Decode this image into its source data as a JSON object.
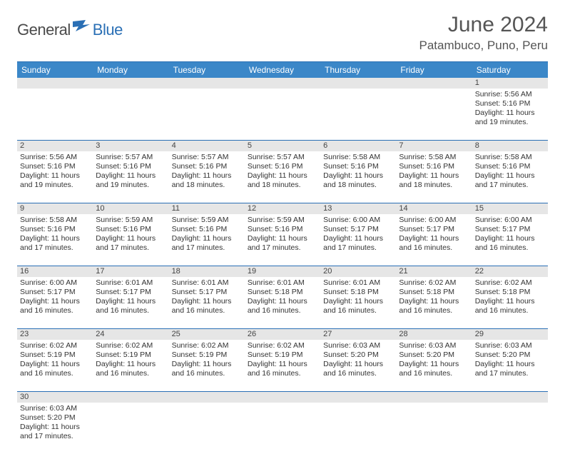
{
  "brand": {
    "name_main": "General",
    "name_accent": "Blue"
  },
  "title": "June 2024",
  "location": "Patambuco, Puno, Peru",
  "colors": {
    "header_bg": "#3b87c8",
    "border": "#2a6fb5",
    "daynum_bg": "#e6e6e6",
    "text": "#333333",
    "title_text": "#555555"
  },
  "day_names": [
    "Sunday",
    "Monday",
    "Tuesday",
    "Wednesday",
    "Thursday",
    "Friday",
    "Saturday"
  ],
  "weeks": [
    [
      null,
      null,
      null,
      null,
      null,
      null,
      {
        "n": "1",
        "sr": "5:56 AM",
        "ss": "5:16 PM",
        "dl": "11 hours and 19 minutes."
      }
    ],
    [
      {
        "n": "2",
        "sr": "5:56 AM",
        "ss": "5:16 PM",
        "dl": "11 hours and 19 minutes."
      },
      {
        "n": "3",
        "sr": "5:57 AM",
        "ss": "5:16 PM",
        "dl": "11 hours and 19 minutes."
      },
      {
        "n": "4",
        "sr": "5:57 AM",
        "ss": "5:16 PM",
        "dl": "11 hours and 18 minutes."
      },
      {
        "n": "5",
        "sr": "5:57 AM",
        "ss": "5:16 PM",
        "dl": "11 hours and 18 minutes."
      },
      {
        "n": "6",
        "sr": "5:58 AM",
        "ss": "5:16 PM",
        "dl": "11 hours and 18 minutes."
      },
      {
        "n": "7",
        "sr": "5:58 AM",
        "ss": "5:16 PM",
        "dl": "11 hours and 18 minutes."
      },
      {
        "n": "8",
        "sr": "5:58 AM",
        "ss": "5:16 PM",
        "dl": "11 hours and 17 minutes."
      }
    ],
    [
      {
        "n": "9",
        "sr": "5:58 AM",
        "ss": "5:16 PM",
        "dl": "11 hours and 17 minutes."
      },
      {
        "n": "10",
        "sr": "5:59 AM",
        "ss": "5:16 PM",
        "dl": "11 hours and 17 minutes."
      },
      {
        "n": "11",
        "sr": "5:59 AM",
        "ss": "5:16 PM",
        "dl": "11 hours and 17 minutes."
      },
      {
        "n": "12",
        "sr": "5:59 AM",
        "ss": "5:16 PM",
        "dl": "11 hours and 17 minutes."
      },
      {
        "n": "13",
        "sr": "6:00 AM",
        "ss": "5:17 PM",
        "dl": "11 hours and 17 minutes."
      },
      {
        "n": "14",
        "sr": "6:00 AM",
        "ss": "5:17 PM",
        "dl": "11 hours and 16 minutes."
      },
      {
        "n": "15",
        "sr": "6:00 AM",
        "ss": "5:17 PM",
        "dl": "11 hours and 16 minutes."
      }
    ],
    [
      {
        "n": "16",
        "sr": "6:00 AM",
        "ss": "5:17 PM",
        "dl": "11 hours and 16 minutes."
      },
      {
        "n": "17",
        "sr": "6:01 AM",
        "ss": "5:17 PM",
        "dl": "11 hours and 16 minutes."
      },
      {
        "n": "18",
        "sr": "6:01 AM",
        "ss": "5:17 PM",
        "dl": "11 hours and 16 minutes."
      },
      {
        "n": "19",
        "sr": "6:01 AM",
        "ss": "5:18 PM",
        "dl": "11 hours and 16 minutes."
      },
      {
        "n": "20",
        "sr": "6:01 AM",
        "ss": "5:18 PM",
        "dl": "11 hours and 16 minutes."
      },
      {
        "n": "21",
        "sr": "6:02 AM",
        "ss": "5:18 PM",
        "dl": "11 hours and 16 minutes."
      },
      {
        "n": "22",
        "sr": "6:02 AM",
        "ss": "5:18 PM",
        "dl": "11 hours and 16 minutes."
      }
    ],
    [
      {
        "n": "23",
        "sr": "6:02 AM",
        "ss": "5:19 PM",
        "dl": "11 hours and 16 minutes."
      },
      {
        "n": "24",
        "sr": "6:02 AM",
        "ss": "5:19 PM",
        "dl": "11 hours and 16 minutes."
      },
      {
        "n": "25",
        "sr": "6:02 AM",
        "ss": "5:19 PM",
        "dl": "11 hours and 16 minutes."
      },
      {
        "n": "26",
        "sr": "6:02 AM",
        "ss": "5:19 PM",
        "dl": "11 hours and 16 minutes."
      },
      {
        "n": "27",
        "sr": "6:03 AM",
        "ss": "5:20 PM",
        "dl": "11 hours and 16 minutes."
      },
      {
        "n": "28",
        "sr": "6:03 AM",
        "ss": "5:20 PM",
        "dl": "11 hours and 16 minutes."
      },
      {
        "n": "29",
        "sr": "6:03 AM",
        "ss": "5:20 PM",
        "dl": "11 hours and 17 minutes."
      }
    ],
    [
      {
        "n": "30",
        "sr": "6:03 AM",
        "ss": "5:20 PM",
        "dl": "11 hours and 17 minutes."
      },
      null,
      null,
      null,
      null,
      null,
      null
    ]
  ],
  "labels": {
    "sunrise": "Sunrise: ",
    "sunset": "Sunset: ",
    "daylight": "Daylight: "
  }
}
